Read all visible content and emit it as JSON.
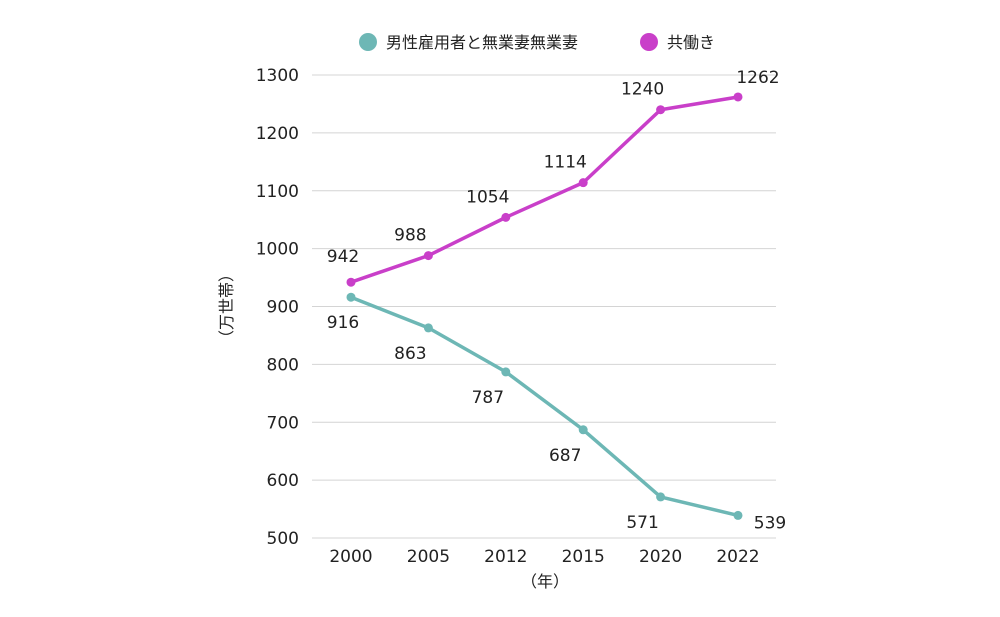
{
  "chart_data": {
    "type": "line",
    "x": [
      "2000",
      "2005",
      "2012",
      "2015",
      "2020",
      "2022"
    ],
    "series": [
      {
        "name": "男性雇用者と無業妻無業妻",
        "color": "#6db7b5",
        "values": [
          916,
          863,
          787,
          687,
          571,
          539
        ],
        "label_position": "below"
      },
      {
        "name": "共働き",
        "color": "#c93fc9",
        "values": [
          942,
          988,
          1054,
          1114,
          1240,
          1262
        ],
        "label_position": "above"
      }
    ],
    "ylim": [
      500,
      1300
    ],
    "yticks": [
      500,
      600,
      700,
      800,
      900,
      1000,
      1100,
      1200,
      1300
    ],
    "ylabel": "（万世帯）",
    "xlabel": "（年）",
    "grid": true,
    "legend_position": "top"
  }
}
